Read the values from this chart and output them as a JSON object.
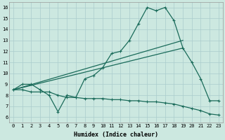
{
  "xlabel": "Humidex (Indice chaleur)",
  "bg_color": "#cce8e0",
  "grid_color": "#aacccc",
  "line_color": "#1a6b5a",
  "xlim": [
    -0.5,
    23.5
  ],
  "ylim": [
    5.5,
    16.5
  ],
  "xticks": [
    0,
    1,
    2,
    3,
    4,
    5,
    6,
    7,
    8,
    9,
    10,
    11,
    12,
    13,
    14,
    15,
    16,
    17,
    18,
    19,
    20,
    21,
    22,
    23
  ],
  "yticks": [
    6,
    7,
    8,
    9,
    10,
    11,
    12,
    13,
    14,
    15,
    16
  ],
  "series_main": {
    "x": [
      0,
      1,
      2,
      3,
      4,
      5,
      6,
      7,
      8,
      9,
      10,
      11,
      12,
      13,
      14,
      15,
      16,
      17,
      18,
      19,
      20,
      21,
      22,
      23
    ],
    "y": [
      8.5,
      9.0,
      9.0,
      8.5,
      8.0,
      6.5,
      8.0,
      7.8,
      9.5,
      9.8,
      10.5,
      11.8,
      12.0,
      13.0,
      14.5,
      16.0,
      15.7,
      16.0,
      14.8,
      12.3,
      11.0,
      9.5,
      7.5,
      7.5
    ]
  },
  "series_lower": {
    "x": [
      0,
      1,
      2,
      3,
      4,
      5,
      6,
      7,
      8,
      9,
      10,
      11,
      12,
      13,
      14,
      15,
      16,
      17,
      18,
      19,
      20,
      21,
      22,
      23
    ],
    "y": [
      8.5,
      8.5,
      8.3,
      8.3,
      8.3,
      8.0,
      7.8,
      7.8,
      7.7,
      7.7,
      7.7,
      7.6,
      7.6,
      7.5,
      7.5,
      7.4,
      7.4,
      7.3,
      7.2,
      7.0,
      6.8,
      6.6,
      6.3,
      6.2
    ]
  },
  "line1": {
    "x": [
      0,
      19
    ],
    "y": [
      8.5,
      12.3
    ]
  },
  "line2": {
    "x": [
      0,
      19
    ],
    "y": [
      8.5,
      13.0
    ]
  }
}
